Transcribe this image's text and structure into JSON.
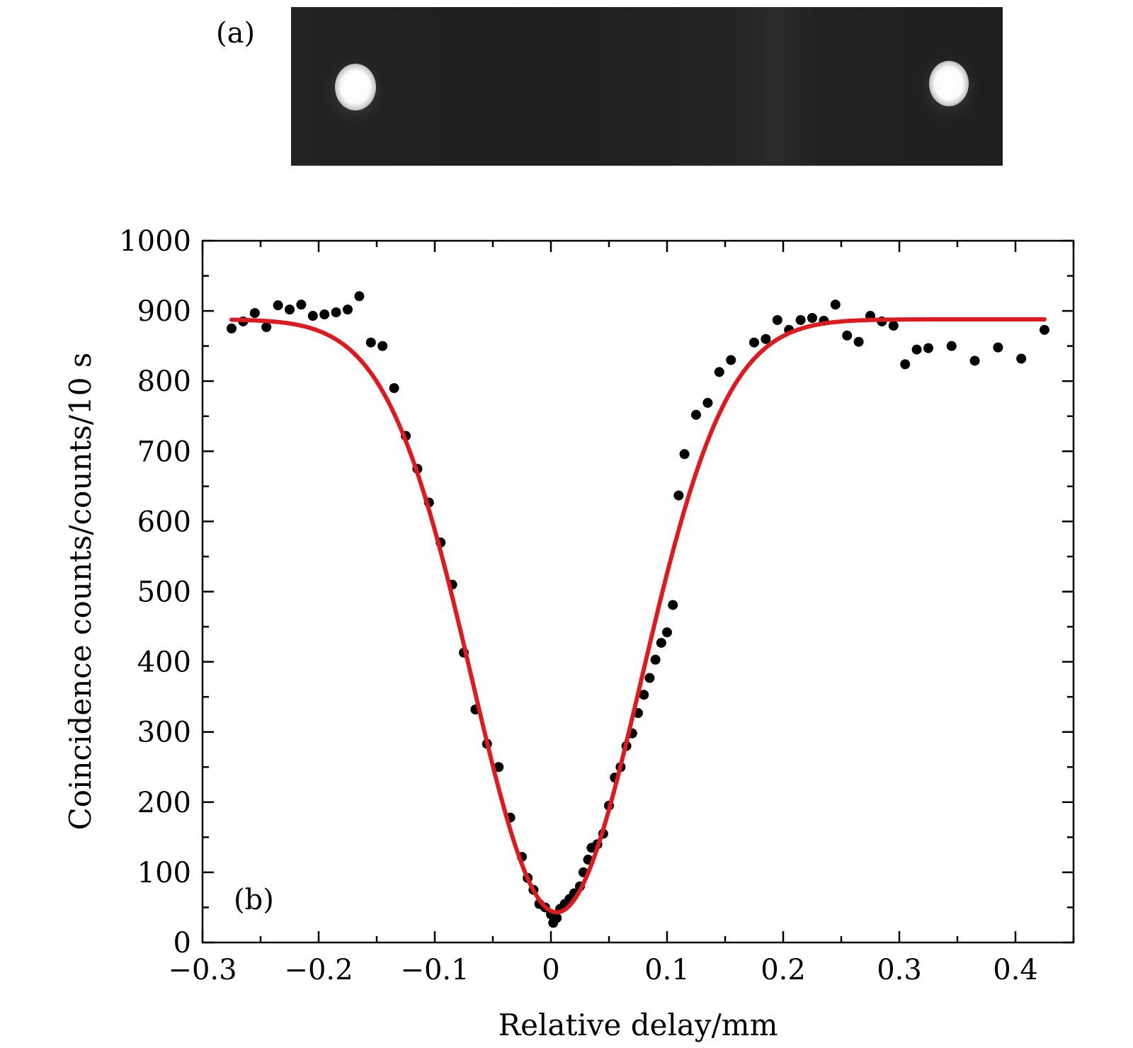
{
  "panel_a": {
    "label": "(a)",
    "image": "camera image: dark horizontal strip with two bright spots (left and right)"
  },
  "chart_data": {
    "type": "scatter",
    "panel_label": "(b)",
    "title": "",
    "xlabel": "Relative delay/mm",
    "ylabel": "Coincidence counts/counts/10 s",
    "xlim": [
      -0.3,
      0.45
    ],
    "ylim": [
      0,
      1000
    ],
    "xticks": [
      -0.3,
      -0.2,
      -0.1,
      0,
      0.1,
      0.2,
      0.3,
      0.4
    ],
    "xtick_labels": [
      "−0.3",
      "−0.2",
      "−0.1",
      "0",
      "0.1",
      "0.2",
      "0.3",
      "0.4"
    ],
    "yticks": [
      0,
      100,
      200,
      300,
      400,
      500,
      600,
      700,
      800,
      900,
      1000
    ],
    "ytick_labels": [
      "0",
      "100",
      "200",
      "300",
      "400",
      "500",
      "600",
      "700",
      "800",
      "900",
      "1000"
    ],
    "colors": {
      "points": "#000000",
      "fit": "#e0191e"
    },
    "series": [
      {
        "name": "measured",
        "kind": "points",
        "x": [
          -0.275,
          -0.265,
          -0.255,
          -0.245,
          -0.235,
          -0.225,
          -0.215,
          -0.205,
          -0.195,
          -0.185,
          -0.175,
          -0.165,
          -0.155,
          -0.145,
          -0.135,
          -0.125,
          -0.115,
          -0.105,
          -0.095,
          -0.085,
          -0.075,
          -0.065,
          -0.055,
          -0.045,
          -0.035,
          -0.025,
          -0.02,
          -0.015,
          -0.01,
          -0.005,
          0.0,
          0.002,
          0.005,
          0.008,
          0.012,
          0.016,
          0.02,
          0.025,
          0.028,
          0.032,
          0.035,
          0.04,
          0.045,
          0.05,
          0.055,
          0.06,
          0.065,
          0.07,
          0.075,
          0.08,
          0.085,
          0.09,
          0.095,
          0.1,
          0.105,
          0.11,
          0.115,
          0.125,
          0.135,
          0.145,
          0.155,
          0.175,
          0.185,
          0.195,
          0.205,
          0.215,
          0.225,
          0.235,
          0.245,
          0.255,
          0.265,
          0.275,
          0.285,
          0.295,
          0.305,
          0.315,
          0.325,
          0.345,
          0.365,
          0.385,
          0.405,
          0.425
        ],
        "y": [
          875,
          885,
          897,
          877,
          908,
          902,
          909,
          893,
          895,
          898,
          902,
          921,
          855,
          850,
          790,
          722,
          675,
          627,
          570,
          510,
          413,
          332,
          283,
          250,
          178,
          122,
          92,
          75,
          55,
          50,
          40,
          28,
          35,
          48,
          55,
          62,
          70,
          80,
          100,
          118,
          135,
          140,
          155,
          195,
          235,
          250,
          280,
          298,
          327,
          353,
          377,
          403,
          427,
          442,
          481,
          637,
          696,
          752,
          769,
          813,
          830,
          855,
          860,
          887,
          873,
          887,
          890,
          886,
          909,
          865,
          856,
          893,
          885,
          879,
          824,
          845,
          847,
          850,
          829,
          848,
          832,
          873
        ]
      },
      {
        "name": "fit",
        "kind": "line",
        "baseline": 888,
        "minimum": 43,
        "center": 0.005,
        "sigma": 0.073,
        "x_range": [
          -0.275,
          0.425
        ]
      }
    ]
  }
}
